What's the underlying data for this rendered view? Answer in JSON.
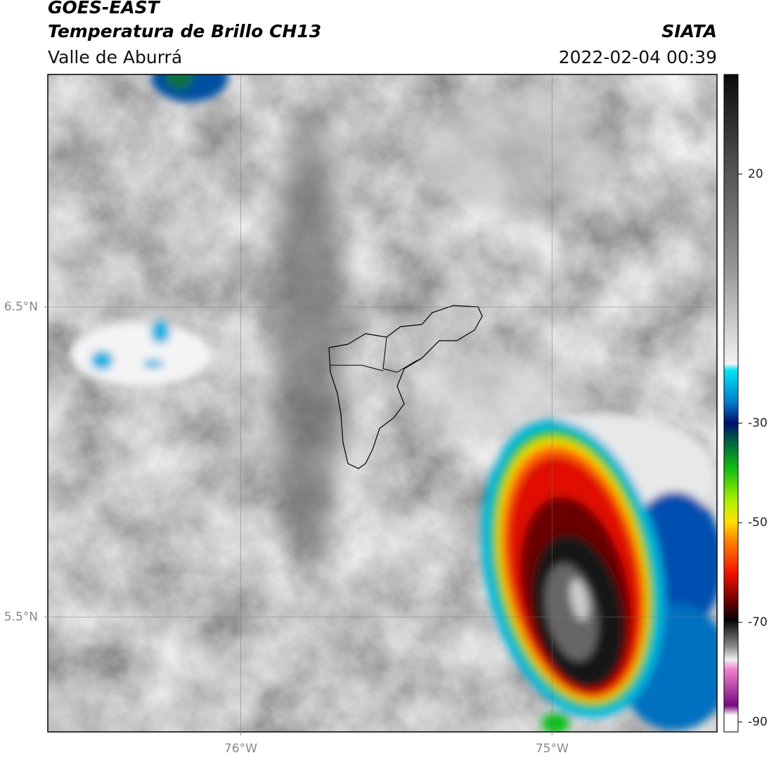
{
  "header": {
    "title": "GOES-EAST",
    "subtitle": "Temperatura de Brillo CH13",
    "region": "Valle de Aburrá",
    "source": "SIATA",
    "datetime": "2022-02-04 00:39"
  },
  "map": {
    "xlim": [
      -76.62,
      -74.47
    ],
    "ylim": [
      5.13,
      7.25
    ],
    "xticks": [
      {
        "value": -76,
        "label": "76°W"
      },
      {
        "value": -75,
        "label": "75°W"
      }
    ],
    "yticks": [
      {
        "value": 6.5,
        "label": "6.5°N"
      },
      {
        "value": 5.5,
        "label": "5.5°N"
      }
    ],
    "grid": true
  },
  "colorbar": {
    "lim": [
      -92,
      40
    ],
    "ticks": [
      20,
      -30,
      -50,
      -70,
      -90
    ]
  }
}
